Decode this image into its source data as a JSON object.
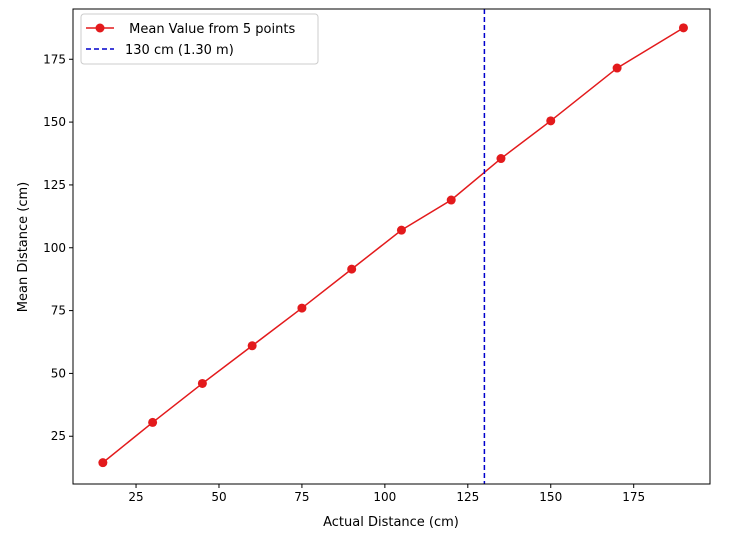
{
  "chart_data": {
    "type": "line",
    "title": "",
    "xlabel": "Actual Distance (cm)",
    "ylabel": "Mean Distance (cm)",
    "xlim": [
      6,
      198
    ],
    "ylim": [
      6,
      195
    ],
    "xticks": [
      25,
      50,
      75,
      100,
      125,
      150,
      175
    ],
    "yticks": [
      25,
      50,
      75,
      100,
      125,
      150,
      175
    ],
    "grid": false,
    "legend_position": "top-left",
    "series": [
      {
        "name": " Mean Value from 5 points",
        "color": "#e31a1c",
        "marker": "circle",
        "x": [
          15,
          30,
          45,
          60,
          75,
          90,
          105,
          120,
          135,
          150,
          170,
          190
        ],
        "y": [
          14.5,
          30.5,
          46,
          61,
          76,
          91.5,
          107,
          119,
          135.5,
          150.5,
          171.5,
          187.5
        ]
      }
    ],
    "reference_lines": [
      {
        "name": "130 cm (1.30 m)",
        "orientation": "vertical",
        "x": 130,
        "color": "#0000cc",
        "style": "dashed"
      }
    ]
  }
}
